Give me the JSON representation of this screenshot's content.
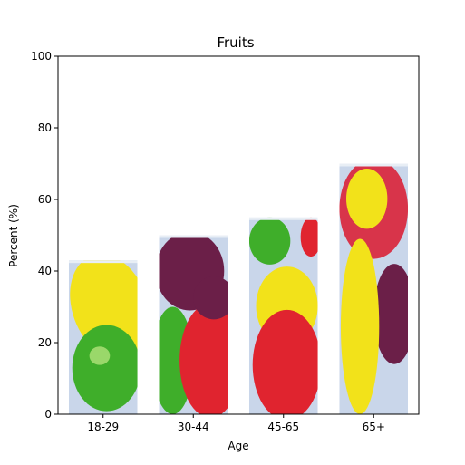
{
  "chart_data": {
    "type": "bar",
    "title": "Fruits",
    "xlabel": "Age",
    "ylabel": "Percent (%)",
    "categories": [
      "18-29",
      "30-44",
      "45-65",
      "65+"
    ],
    "values": [
      43,
      50,
      55,
      70
    ],
    "ylim": [
      0,
      100
    ],
    "yticks": [
      0,
      20,
      40,
      60,
      80,
      100
    ],
    "grid": false,
    "bar_fill": "pictorial fruit images (apple, banana, grapes, strawberry)",
    "colors": {
      "banana": "#f2e21a",
      "green_apple": "#3fae2a",
      "strawberry": "#e0242f",
      "grape": "#6b1f48",
      "red_apple": "#d8344a",
      "backdrop": "#c9d6ea"
    }
  }
}
